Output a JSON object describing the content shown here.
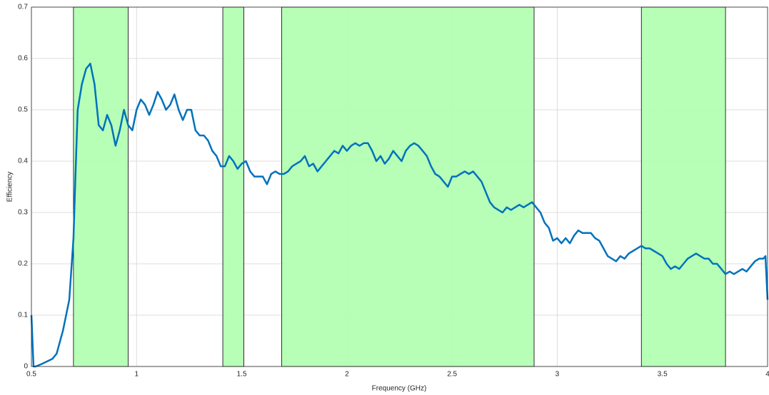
{
  "chart_data": {
    "type": "line",
    "x_label": "Frequency (GHz)",
    "y_label": "Efficiency",
    "x": [
      0.5,
      0.51,
      0.52,
      0.55,
      0.6,
      0.62,
      0.65,
      0.68,
      0.7,
      0.71,
      0.72,
      0.74,
      0.76,
      0.78,
      0.8,
      0.82,
      0.84,
      0.86,
      0.88,
      0.9,
      0.92,
      0.94,
      0.96,
      0.98,
      1.0,
      1.02,
      1.04,
      1.06,
      1.08,
      1.1,
      1.12,
      1.14,
      1.16,
      1.18,
      1.2,
      1.22,
      1.24,
      1.26,
      1.28,
      1.3,
      1.32,
      1.34,
      1.36,
      1.38,
      1.4,
      1.42,
      1.44,
      1.46,
      1.48,
      1.5,
      1.52,
      1.54,
      1.56,
      1.58,
      1.6,
      1.62,
      1.64,
      1.66,
      1.68,
      1.7,
      1.72,
      1.74,
      1.76,
      1.78,
      1.8,
      1.82,
      1.84,
      1.86,
      1.88,
      1.9,
      1.92,
      1.94,
      1.96,
      1.98,
      2.0,
      2.02,
      2.04,
      2.06,
      2.08,
      2.1,
      2.12,
      2.14,
      2.16,
      2.18,
      2.2,
      2.22,
      2.24,
      2.26,
      2.28,
      2.3,
      2.32,
      2.34,
      2.36,
      2.38,
      2.4,
      2.42,
      2.44,
      2.46,
      2.48,
      2.5,
      2.52,
      2.54,
      2.56,
      2.58,
      2.6,
      2.62,
      2.64,
      2.66,
      2.68,
      2.7,
      2.72,
      2.74,
      2.76,
      2.78,
      2.8,
      2.82,
      2.84,
      2.86,
      2.88,
      2.9,
      2.92,
      2.94,
      2.96,
      2.98,
      3.0,
      3.02,
      3.04,
      3.06,
      3.08,
      3.1,
      3.12,
      3.14,
      3.16,
      3.18,
      3.2,
      3.22,
      3.24,
      3.26,
      3.28,
      3.3,
      3.32,
      3.34,
      3.36,
      3.38,
      3.4,
      3.42,
      3.44,
      3.46,
      3.48,
      3.5,
      3.52,
      3.54,
      3.56,
      3.58,
      3.6,
      3.62,
      3.64,
      3.66,
      3.68,
      3.7,
      3.72,
      3.74,
      3.76,
      3.78,
      3.8,
      3.82,
      3.84,
      3.86,
      3.88,
      3.9,
      3.92,
      3.94,
      3.96,
      3.98,
      3.99,
      4.0
    ],
    "values": [
      0.1,
      0.0,
      0.0,
      0.005,
      0.015,
      0.025,
      0.07,
      0.13,
      0.25,
      0.38,
      0.5,
      0.55,
      0.58,
      0.59,
      0.55,
      0.47,
      0.46,
      0.49,
      0.47,
      0.43,
      0.46,
      0.5,
      0.47,
      0.46,
      0.5,
      0.52,
      0.51,
      0.49,
      0.51,
      0.535,
      0.52,
      0.5,
      0.51,
      0.53,
      0.5,
      0.48,
      0.5,
      0.5,
      0.46,
      0.45,
      0.45,
      0.44,
      0.42,
      0.41,
      0.39,
      0.39,
      0.41,
      0.4,
      0.385,
      0.395,
      0.4,
      0.38,
      0.37,
      0.37,
      0.37,
      0.355,
      0.375,
      0.38,
      0.375,
      0.375,
      0.38,
      0.39,
      0.395,
      0.4,
      0.41,
      0.39,
      0.395,
      0.38,
      0.39,
      0.4,
      0.41,
      0.42,
      0.415,
      0.43,
      0.42,
      0.43,
      0.435,
      0.43,
      0.435,
      0.435,
      0.42,
      0.4,
      0.41,
      0.395,
      0.405,
      0.42,
      0.41,
      0.4,
      0.42,
      0.43,
      0.435,
      0.43,
      0.42,
      0.41,
      0.39,
      0.375,
      0.37,
      0.36,
      0.35,
      0.37,
      0.37,
      0.375,
      0.38,
      0.375,
      0.38,
      0.37,
      0.36,
      0.34,
      0.32,
      0.31,
      0.305,
      0.3,
      0.31,
      0.305,
      0.31,
      0.315,
      0.31,
      0.315,
      0.32,
      0.31,
      0.3,
      0.28,
      0.27,
      0.245,
      0.25,
      0.24,
      0.25,
      0.24,
      0.255,
      0.265,
      0.26,
      0.26,
      0.26,
      0.25,
      0.245,
      0.23,
      0.215,
      0.21,
      0.205,
      0.215,
      0.21,
      0.22,
      0.225,
      0.23,
      0.235,
      0.23,
      0.23,
      0.225,
      0.22,
      0.215,
      0.2,
      0.19,
      0.195,
      0.19,
      0.2,
      0.21,
      0.215,
      0.22,
      0.215,
      0.21,
      0.21,
      0.2,
      0.2,
      0.19,
      0.18,
      0.185,
      0.18,
      0.185,
      0.19,
      0.185,
      0.195,
      0.205,
      0.21,
      0.21,
      0.215,
      0.13
    ],
    "color": "#0072bd",
    "shaded_regions": [
      [
        0.7,
        0.96
      ],
      [
        1.41,
        1.51
      ],
      [
        1.69,
        2.89
      ],
      [
        3.4,
        3.8
      ]
    ],
    "shade_color": "#b3ffb3",
    "xlim": [
      0.5,
      4
    ],
    "xticks": [
      0.5,
      1,
      1.5,
      2,
      2.5,
      3,
      3.5,
      4
    ],
    "ylim": [
      0,
      0.7
    ],
    "yticks": [
      0,
      0.1,
      0.2,
      0.3,
      0.4,
      0.5,
      0.6,
      0.7
    ],
    "grid": true
  }
}
